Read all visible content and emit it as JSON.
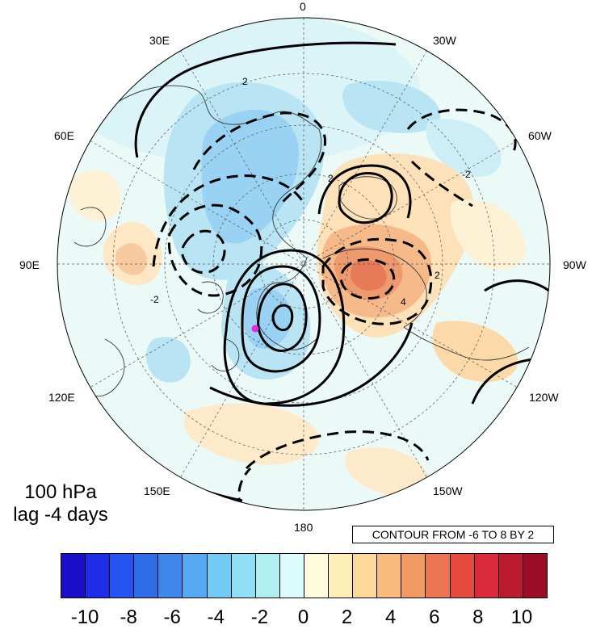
{
  "title": {
    "level": "100 hPa",
    "lag": "lag -4 days"
  },
  "contour_info": "CONTOUR FROM -6 TO 8 BY 2",
  "longitude_labels": {
    "lon_0": "0",
    "lon_30w": "30W",
    "lon_60w": "60W",
    "lon_90w": "90W",
    "lon_120w": "120W",
    "lon_150w": "150W",
    "lon_180": "180",
    "lon_150e": "150E",
    "lon_120e": "120E",
    "lon_90e": "90E",
    "lon_60e": "60E",
    "lon_30e": "30E"
  },
  "contour_labels": [
    "2",
    "-2",
    "2",
    "-2",
    "4",
    "2"
  ],
  "colorbar": {
    "ticks": [
      "-10",
      "-8",
      "-6",
      "-4",
      "-2",
      "0",
      "2",
      "4",
      "6",
      "8",
      "10"
    ],
    "colors": [
      "#1a0fc9",
      "#1f2de6",
      "#2552f0",
      "#2f6de8",
      "#3f86ea",
      "#55a8f2",
      "#73cbf4",
      "#91dff4",
      "#b1eef2",
      "#dcfbfb",
      "#fffcdc",
      "#fdeeb8",
      "#fbd999",
      "#f7bb7b",
      "#f29a63",
      "#ec7552",
      "#e54a3e",
      "#d9293a",
      "#bc1a2e",
      "#9a0d25"
    ]
  },
  "marker": {
    "color": "#e22de0"
  }
}
